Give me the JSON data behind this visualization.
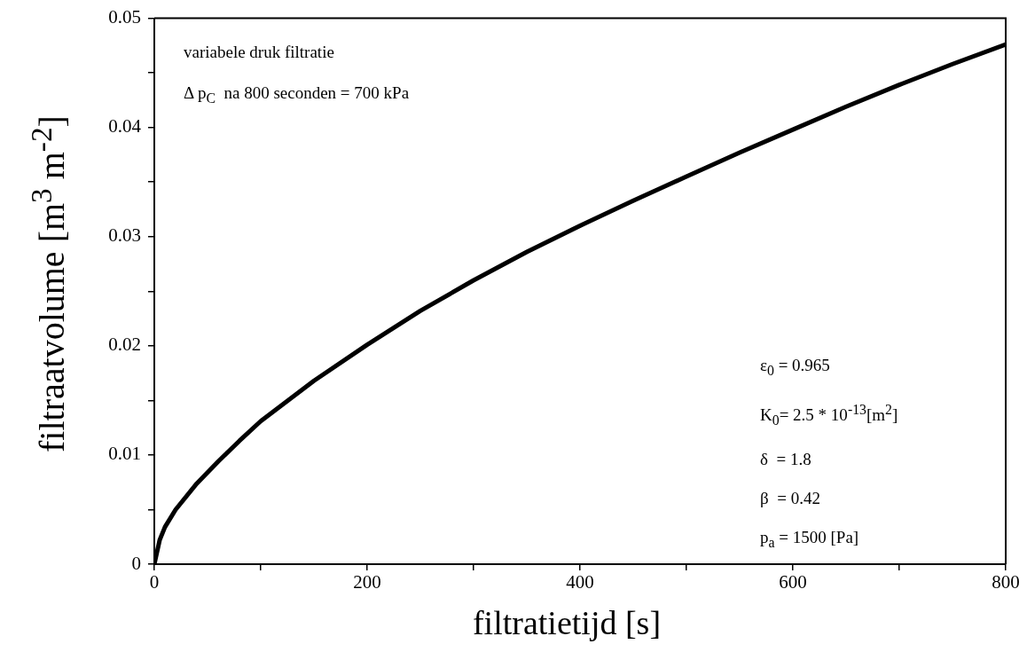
{
  "chart_data": {
    "type": "line",
    "xlabel": "filtratietijd [s]",
    "ylabel": "filtraatvolume [m$^{3}$ m$^{-2}$]",
    "annotations": [
      "variabele druk filtratie",
      "Δ p$_{C}$  na 800 seconden = 700 kPa",
      "ε$_{0}$ = 0.965",
      "K$_{0}$= 2.5 * 10$^{-13}$[m$^{2}$]",
      "δ  = 1.8",
      "β  = 0.42",
      "p$_{a}$ = 1500 [Pa]"
    ],
    "x": [
      0,
      5,
      10,
      20,
      40,
      60,
      80,
      100,
      150,
      200,
      250,
      300,
      350,
      400,
      450,
      500,
      550,
      600,
      650,
      700,
      750,
      800
    ],
    "series": [
      {
        "color": "#000000",
        "values": [
          0,
          0.0022,
          0.0034,
          0.005,
          0.0074,
          0.0094,
          0.0113,
          0.0131,
          0.0168,
          0.0201,
          0.0232,
          0.026,
          0.0286,
          0.031,
          0.0333,
          0.0355,
          0.0377,
          0.0398,
          0.0419,
          0.0439,
          0.0458,
          0.0476
        ]
      }
    ],
    "xlim": [
      0,
      800
    ],
    "xticks": [
      0,
      {
        "value": 100,
        "label": null
      },
      200,
      {
        "value": 300,
        "label": null
      },
      400,
      {
        "value": 500,
        "label": null
      },
      600,
      {
        "value": 700,
        "label": null
      },
      800
    ],
    "ylim": [
      0,
      0.05
    ],
    "yticks": [
      0,
      {
        "value": 0.005,
        "label": null
      },
      0.01,
      {
        "value": 0.015,
        "label": null
      },
      0.02,
      {
        "value": 0.025,
        "label": null
      },
      0.03,
      {
        "value": 0.035,
        "label": null
      },
      0.04,
      {
        "value": 0.045,
        "label": null
      },
      0.05
    ],
    "grid": false,
    "legend": false,
    "marker": "none",
    "line_style": "solid"
  }
}
